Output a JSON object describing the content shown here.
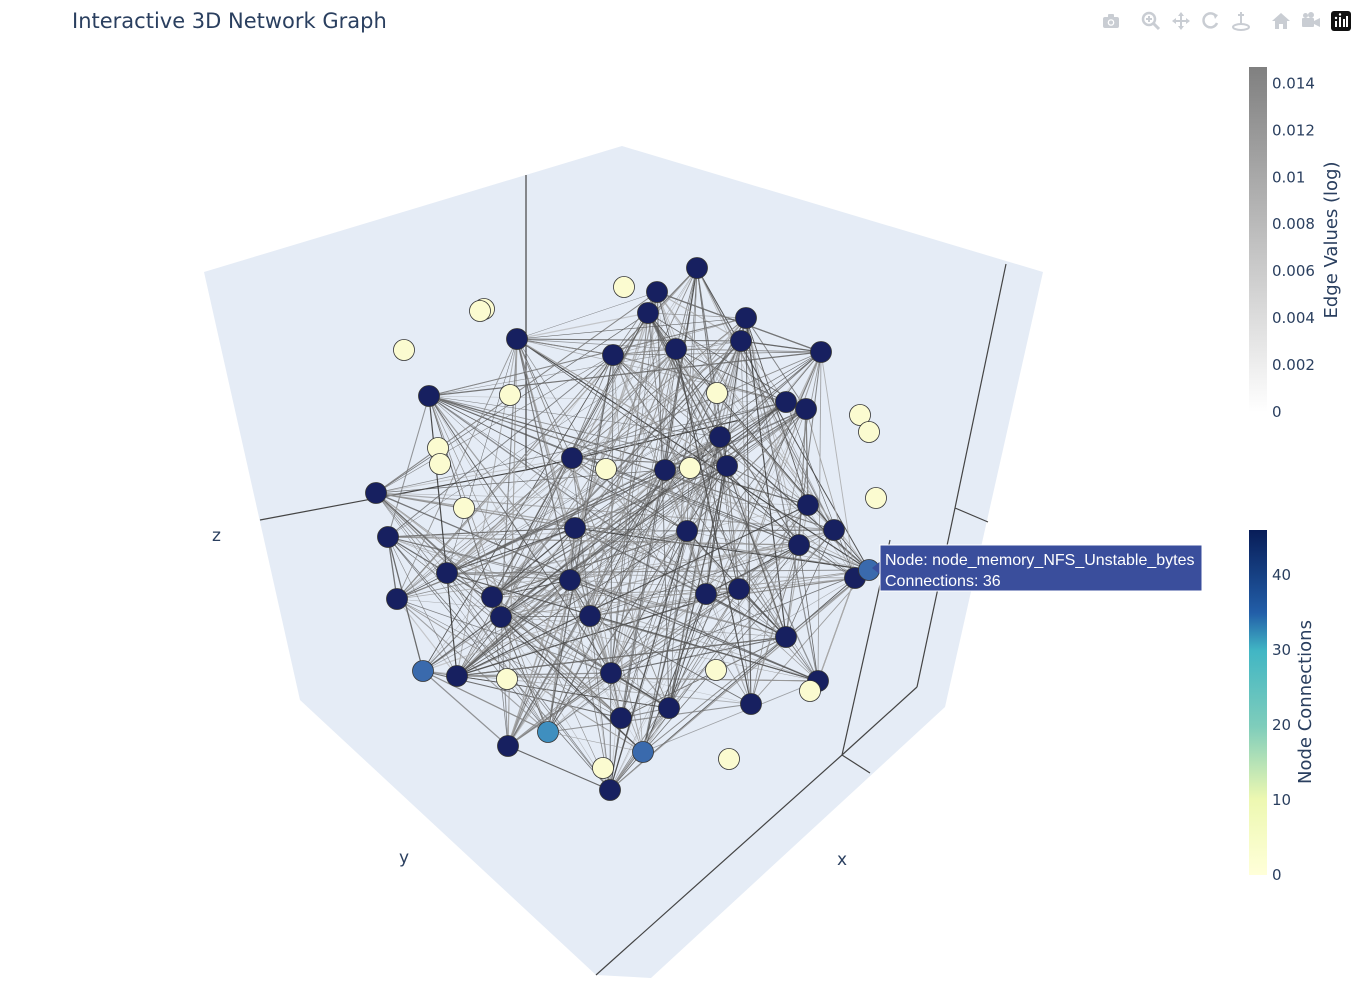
{
  "title": "Interactive 3D Network Graph",
  "modebar": {
    "buttons": [
      "camera-icon",
      "zoom-icon",
      "pan-icon",
      "orbit-icon",
      "turntable-icon",
      "home-icon",
      "reset-camera-icon",
      "plotly-logo-icon"
    ]
  },
  "colors": {
    "scene_bg": "#e5ecf6",
    "axis_line": "#444444",
    "edge": "#555555",
    "node_high": "#172060",
    "node_mid": "#3a6aad",
    "node_mid2": "#3f8fbf",
    "node_low": "#fbfbd0",
    "hover_bg": "#3a4e9c"
  },
  "chart_data": {
    "type": "scatter3d-network",
    "title": "Interactive 3D Network Graph",
    "axes": {
      "x": "x",
      "y": "y",
      "z": "z"
    },
    "edge_colorbar": {
      "title": "Edge Values (log)",
      "ticks": [
        "0",
        "0.002",
        "0.004",
        "0.006",
        "0.008",
        "0.01",
        "0.012",
        "0.014"
      ],
      "range": [
        0,
        0.0147
      ]
    },
    "node_colorbar": {
      "title": "Node Connections",
      "ticks": [
        "0",
        "10",
        "20",
        "30",
        "40"
      ],
      "range": [
        0,
        46
      ]
    },
    "hover": {
      "node": "Node: node_memory_NFS_Unstable_bytes",
      "connections": "Connections: 36"
    }
  }
}
